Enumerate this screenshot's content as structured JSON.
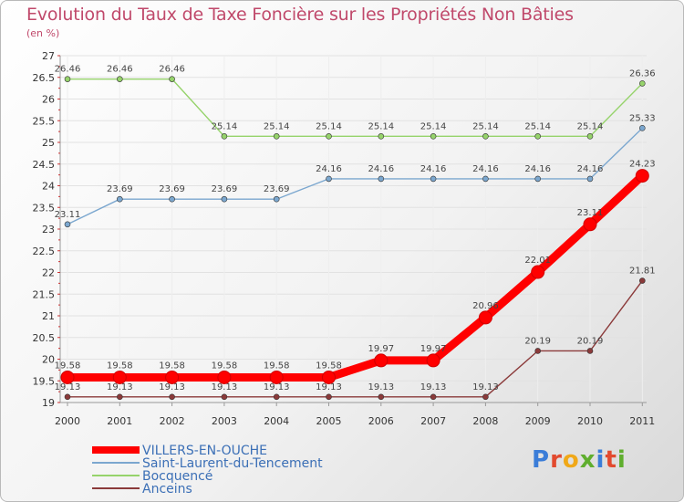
{
  "title": "Evolution du Taux de Taxe Foncière sur les Propriétés Non Bâties",
  "subtitle": "(en %)",
  "logo": {
    "letters": [
      "P",
      "r",
      "o",
      "x",
      "i",
      "t",
      "i"
    ],
    "colors": [
      "#3b7dd8",
      "#e24a2f",
      "#f0a818",
      "#5fae2e",
      "#3b7dd8",
      "#e24a2f",
      "#5fae2e"
    ]
  },
  "chart_data": {
    "type": "line",
    "title": "Evolution du Taux de Taxe Foncière sur les Propriétés Non Bâties",
    "ylabel": "(en %)",
    "xlabel": "",
    "ylim": [
      19,
      27
    ],
    "yticks": [
      "19",
      "19.5",
      "20",
      "20.5",
      "21",
      "21.5",
      "22",
      "22.5",
      "23",
      "23.5",
      "24",
      "24.5",
      "25",
      "25.5",
      "26",
      "26.5",
      "27"
    ],
    "categories": [
      "2000",
      "2001",
      "2002",
      "2003",
      "2004",
      "2005",
      "2006",
      "2007",
      "2008",
      "2009",
      "2010",
      "2011"
    ],
    "series": [
      {
        "name": "VILLERS-EN-OUCHE",
        "color": "#ff0000",
        "values": [
          19.58,
          19.58,
          19.58,
          19.58,
          19.58,
          19.58,
          19.97,
          19.97,
          20.96,
          22.01,
          23.11,
          24.23
        ],
        "labels": [
          "19.58",
          "19.58",
          "19.58",
          "19.58",
          "19.58",
          "19.58",
          "19.97",
          "19.97",
          "20.96",
          "22.01",
          "23.11",
          "24.23"
        ]
      },
      {
        "name": "Saint-Laurent-du-Tencement",
        "color": "#7ba7cf",
        "values": [
          23.11,
          23.69,
          23.69,
          23.69,
          23.69,
          24.16,
          24.16,
          24.16,
          24.16,
          24.16,
          24.16,
          25.33
        ],
        "labels": [
          "23.11",
          "23.69",
          "23.69",
          "23.69",
          "23.69",
          "24.16",
          "24.16",
          "24.16",
          "24.16",
          "24.16",
          "24.16",
          "25.33"
        ]
      },
      {
        "name": "Bocquencé",
        "color": "#96d36b",
        "values": [
          26.46,
          26.46,
          26.46,
          25.14,
          25.14,
          25.14,
          25.14,
          25.14,
          25.14,
          25.14,
          25.14,
          26.36
        ],
        "labels": [
          "26.46",
          "26.46",
          "26.46",
          "25.14",
          "25.14",
          "25.14",
          "25.14",
          "25.14",
          "25.14",
          "25.14",
          "25.14",
          "26.36"
        ]
      },
      {
        "name": "Anceins",
        "color": "#8b3a3a",
        "values": [
          19.13,
          19.13,
          19.13,
          19.13,
          19.13,
          19.13,
          19.13,
          19.13,
          19.13,
          20.19,
          20.19,
          21.81
        ],
        "labels": [
          "19.13",
          "19.13",
          "19.13",
          "19.13",
          "19.13",
          "19.13",
          "19.13",
          "19.13",
          "19.13",
          "20.19",
          "20.19",
          "21.81"
        ]
      }
    ],
    "legend": "bottom-left"
  }
}
